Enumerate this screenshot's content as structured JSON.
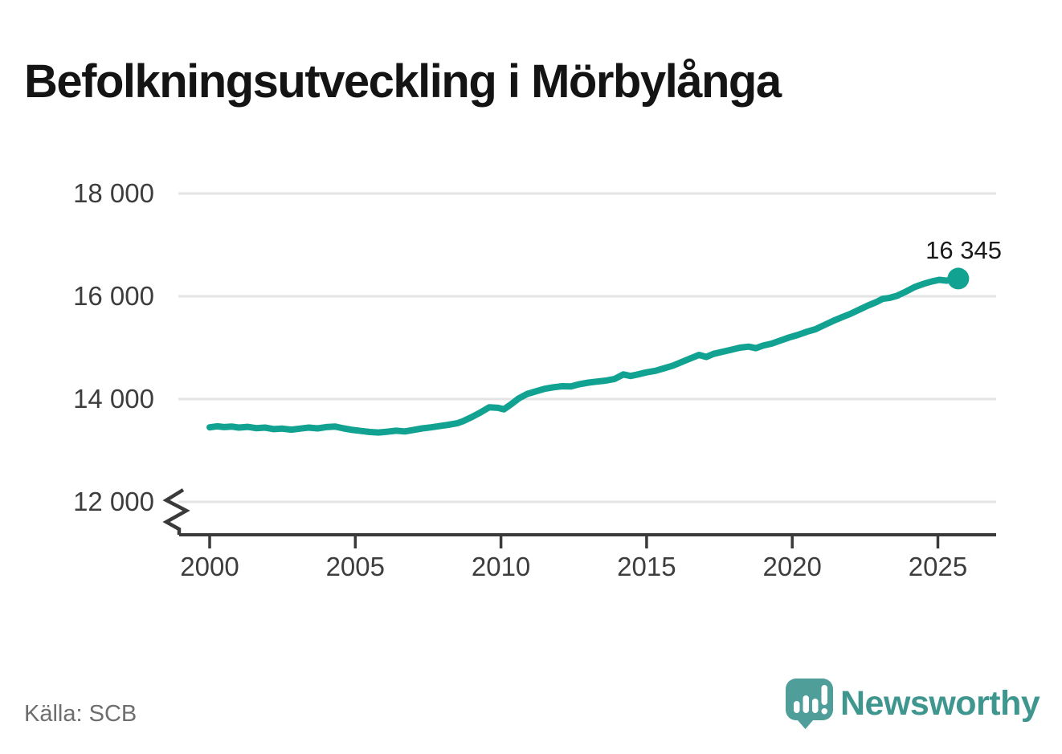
{
  "title": "Befolkningsutveckling i Mörbylånga",
  "source": {
    "label": "Källa: SCB"
  },
  "branding": {
    "name": "Newsworthy",
    "icon": "speech-bubble-bar-chart-icon",
    "text_color": "#3E968F",
    "mark_color": "#4F9E99"
  },
  "end_label": "16 345",
  "colors": {
    "line": "#12A292",
    "grid": "#E4E4E4",
    "axis": "#3A3A3A",
    "tick_text": "#3D3D3D",
    "title_text": "#141414",
    "source_text": "#6E6E6E"
  },
  "chart_data": {
    "type": "line",
    "title": "Befolkningsutveckling i Mörbylånga",
    "xlabel": "",
    "ylabel": "",
    "grid": "horizontal",
    "legend": "none",
    "axis_break_below": 12000,
    "xlim": [
      1998.9,
      2027.2
    ],
    "ylim": [
      11700,
      18400
    ],
    "x_ticks": [
      2000,
      2005,
      2010,
      2015,
      2020,
      2025
    ],
    "x_tick_labels": [
      "2000",
      "2005",
      "2010",
      "2015",
      "2020",
      "2025"
    ],
    "y_ticks": [
      12000,
      14000,
      16000,
      18000
    ],
    "y_tick_labels": [
      "12 000",
      "14 000",
      "16 000",
      "18 000"
    ],
    "series": [
      {
        "name": "Befolkning",
        "final_value": 16345,
        "final_value_label": "16 345",
        "points": [
          [
            2000.0,
            13450
          ],
          [
            2000.25,
            13470
          ],
          [
            2000.5,
            13455
          ],
          [
            2000.75,
            13465
          ],
          [
            2001.0,
            13445
          ],
          [
            2001.3,
            13460
          ],
          [
            2001.6,
            13435
          ],
          [
            2001.9,
            13445
          ],
          [
            2002.2,
            13415
          ],
          [
            2002.5,
            13425
          ],
          [
            2002.8,
            13405
          ],
          [
            2003.1,
            13425
          ],
          [
            2003.4,
            13445
          ],
          [
            2003.7,
            13430
          ],
          [
            2004.0,
            13455
          ],
          [
            2004.3,
            13465
          ],
          [
            2004.6,
            13430
          ],
          [
            2004.9,
            13400
          ],
          [
            2005.2,
            13380
          ],
          [
            2005.5,
            13360
          ],
          [
            2005.8,
            13350
          ],
          [
            2006.1,
            13365
          ],
          [
            2006.4,
            13385
          ],
          [
            2006.7,
            13370
          ],
          [
            2007.0,
            13400
          ],
          [
            2007.3,
            13430
          ],
          [
            2007.6,
            13450
          ],
          [
            2007.9,
            13475
          ],
          [
            2008.2,
            13500
          ],
          [
            2008.5,
            13530
          ],
          [
            2008.7,
            13570
          ],
          [
            2009.0,
            13650
          ],
          [
            2009.3,
            13740
          ],
          [
            2009.6,
            13840
          ],
          [
            2009.9,
            13830
          ],
          [
            2010.1,
            13800
          ],
          [
            2010.35,
            13900
          ],
          [
            2010.6,
            14010
          ],
          [
            2010.9,
            14100
          ],
          [
            2011.2,
            14150
          ],
          [
            2011.5,
            14200
          ],
          [
            2011.8,
            14230
          ],
          [
            2012.1,
            14250
          ],
          [
            2012.4,
            14245
          ],
          [
            2012.7,
            14290
          ],
          [
            2013.0,
            14320
          ],
          [
            2013.3,
            14340
          ],
          [
            2013.6,
            14360
          ],
          [
            2013.9,
            14390
          ],
          [
            2014.2,
            14480
          ],
          [
            2014.45,
            14450
          ],
          [
            2014.7,
            14480
          ],
          [
            2015.0,
            14520
          ],
          [
            2015.3,
            14550
          ],
          [
            2015.6,
            14600
          ],
          [
            2015.9,
            14650
          ],
          [
            2016.2,
            14720
          ],
          [
            2016.5,
            14790
          ],
          [
            2016.8,
            14860
          ],
          [
            2017.05,
            14820
          ],
          [
            2017.3,
            14880
          ],
          [
            2017.6,
            14920
          ],
          [
            2017.9,
            14960
          ],
          [
            2018.2,
            15000
          ],
          [
            2018.5,
            15020
          ],
          [
            2018.75,
            14990
          ],
          [
            2019.0,
            15040
          ],
          [
            2019.3,
            15080
          ],
          [
            2019.6,
            15140
          ],
          [
            2019.9,
            15200
          ],
          [
            2020.2,
            15250
          ],
          [
            2020.5,
            15310
          ],
          [
            2020.8,
            15360
          ],
          [
            2021.1,
            15440
          ],
          [
            2021.4,
            15520
          ],
          [
            2021.7,
            15590
          ],
          [
            2022.0,
            15660
          ],
          [
            2022.3,
            15740
          ],
          [
            2022.6,
            15820
          ],
          [
            2022.9,
            15890
          ],
          [
            2023.1,
            15950
          ],
          [
            2023.35,
            15970
          ],
          [
            2023.6,
            16010
          ],
          [
            2023.9,
            16090
          ],
          [
            2024.2,
            16180
          ],
          [
            2024.5,
            16240
          ],
          [
            2024.8,
            16290
          ],
          [
            2025.05,
            16320
          ],
          [
            2025.3,
            16305
          ],
          [
            2025.55,
            16330
          ],
          [
            2025.7,
            16345
          ]
        ]
      }
    ]
  }
}
